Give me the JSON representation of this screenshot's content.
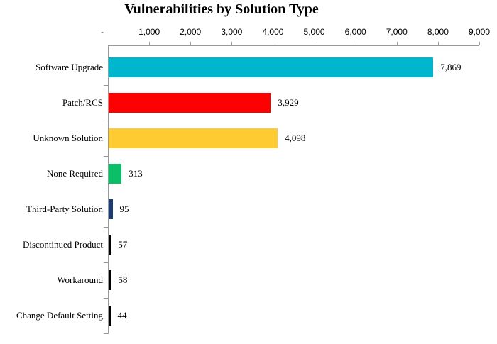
{
  "chart_data": {
    "type": "bar",
    "orientation": "horizontal",
    "title": "Vulnerabilities by Solution Type",
    "categories": [
      "Software Upgrade",
      "Patch/RCS",
      "Unknown Solution",
      "None Required",
      "Third-Party Solution",
      "Discontinued Product",
      "Workaround",
      "Change Default Setting"
    ],
    "values": [
      7869,
      3929,
      4098,
      313,
      95,
      57,
      58,
      44
    ],
    "value_labels": [
      "7,869",
      "3,929",
      "4,098",
      "313",
      "95",
      "57",
      "58",
      "44"
    ],
    "bar_colors": [
      "#00B6CE",
      "#FF0000",
      "#FFCB33",
      "#0BBE68",
      "#1D3C74",
      "#000000",
      "#000000",
      "#000000"
    ],
    "x_axis": {
      "position": "top",
      "min": 0,
      "max": 9000,
      "tick_interval": 1000,
      "tick_labels": [
        "-",
        "1,000",
        "2,000",
        "3,000",
        "4,000",
        "5,000",
        "6,000",
        "7,000",
        "8,000",
        "9,000"
      ]
    },
    "xlabel": "",
    "ylabel": "",
    "grid": false,
    "legend": false,
    "data_labels": true
  },
  "colors": {
    "axis_line": "#999999",
    "text": "#000000",
    "background": "#FFFFFF"
  }
}
